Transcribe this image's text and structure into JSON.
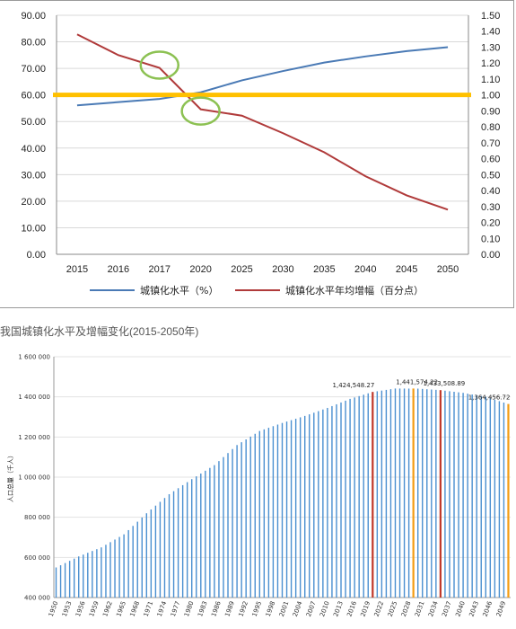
{
  "caption": "我国城镇化水平及增幅变化(2015-2050年)",
  "colors": {
    "urbanization_line": "#4a7ab5",
    "increase_line": "#b03a3a",
    "threshold_line": "#ffc000",
    "highlight_circle": "#8cc152",
    "population_bar": "#4a8fd0",
    "marker_red": "#c0392b",
    "marker_orange": "#f39c12"
  },
  "chart_data": [
    {
      "type": "line",
      "x": [
        "2015",
        "2016",
        "2017",
        "2020",
        "2025",
        "2030",
        "2035",
        "2040",
        "2045",
        "2050"
      ],
      "series": [
        {
          "name": "城镇化水平（%）",
          "axis": "left",
          "values": [
            56.1,
            57.3,
            58.5,
            61.0,
            65.5,
            69.0,
            72.2,
            74.5,
            76.5,
            78.0
          ]
        },
        {
          "name": "城镇化水平年均增幅（百分点）",
          "axis": "right",
          "values": [
            1.38,
            1.25,
            1.17,
            0.91,
            0.87,
            0.76,
            0.64,
            0.49,
            0.37,
            0.28
          ]
        }
      ],
      "ylim_left": [
        0,
        90
      ],
      "ylim_right": [
        0,
        1.5
      ],
      "yticks_left": [
        "0.00",
        "10.00",
        "20.00",
        "30.00",
        "40.00",
        "50.00",
        "60.00",
        "70.00",
        "80.00",
        "90.00"
      ],
      "yticks_right": [
        "0.00",
        "0.10",
        "0.20",
        "0.30",
        "0.40",
        "0.50",
        "0.60",
        "0.70",
        "0.80",
        "0.90",
        "1.00",
        "1.10",
        "1.20",
        "1.30",
        "1.40",
        "1.50"
      ],
      "reference_line_right": 1.0,
      "highlights": [
        {
          "x": "2017"
        },
        {
          "x": "2020"
        }
      ],
      "grid": true,
      "legend_position": "bottom"
    },
    {
      "type": "bar",
      "ylabel": "人口总量（千人）",
      "ylim": [
        400000,
        1600000
      ],
      "yticks": [
        "400 000",
        "600 000",
        "800 000",
        "1 000 000",
        "1 200 000",
        "1 400 000",
        "1 600 000"
      ],
      "x_start": 1950,
      "x_end": 2050,
      "xticks": [
        "1950",
        "1953",
        "1956",
        "1959",
        "1962",
        "1965",
        "1968",
        "1971",
        "1974",
        "1977",
        "1980",
        "1983",
        "1986",
        "1989",
        "1992",
        "1995",
        "1998",
        "2001",
        "2004",
        "2007",
        "2010",
        "2013",
        "2016",
        "2019",
        "2022",
        "2025",
        "2028",
        "2031",
        "2034",
        "2037",
        "2040",
        "2043",
        "2046",
        "2049"
      ],
      "anchors": [
        [
          1950,
          550000
        ],
        [
          1955,
          605000
        ],
        [
          1960,
          650000
        ],
        [
          1965,
          715000
        ],
        [
          1970,
          820000
        ],
        [
          1975,
          915000
        ],
        [
          1980,
          990000
        ],
        [
          1985,
          1060000
        ],
        [
          1990,
          1160000
        ],
        [
          1995,
          1230000
        ],
        [
          2000,
          1270000
        ],
        [
          2005,
          1305000
        ],
        [
          2010,
          1345000
        ],
        [
          2015,
          1390000
        ],
        [
          2020,
          1424548
        ],
        [
          2025,
          1441574
        ],
        [
          2030,
          1441000
        ],
        [
          2035,
          1433509
        ],
        [
          2040,
          1420000
        ],
        [
          2045,
          1400000
        ],
        [
          2050,
          1364457
        ]
      ],
      "grid": true,
      "markers": [
        {
          "year": 2020,
          "value": 1424548.27,
          "label": "1,424,548.27",
          "color": "red"
        },
        {
          "year": 2029,
          "value": 1441574.22,
          "label": "1,441,574.22",
          "color": "orange"
        },
        {
          "year": 2035,
          "value": 1433508.89,
          "label": "1,433,508.89",
          "color": "red"
        },
        {
          "year": 2050,
          "value": 1364456.72,
          "label": "1,364,456.72",
          "color": "orange"
        }
      ]
    }
  ]
}
